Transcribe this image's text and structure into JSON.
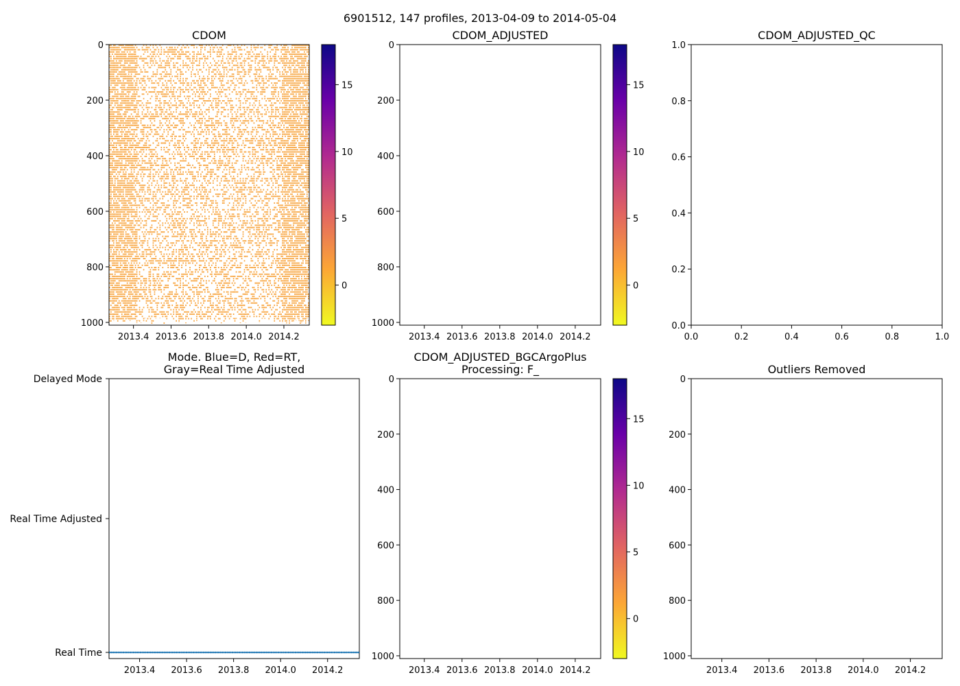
{
  "suptitle": "6901512, 147 profiles, 2013-04-09 to 2014-05-04",
  "chart_data": [
    {
      "id": "cdom",
      "type": "heatmap",
      "title": "CDOM",
      "ylim": [
        1010,
        0
      ],
      "xlim": [
        2013.27,
        2014.335
      ],
      "yticks": [
        0,
        200,
        400,
        600,
        800,
        1000
      ],
      "xticks": [
        2013.4,
        2013.6,
        2013.8,
        2014.0,
        2014.2
      ],
      "xtick_labels": [
        "2013.4",
        "2013.6",
        "2013.8",
        "2014.0",
        "2014.2"
      ],
      "ytick_labels": [
        "0",
        "200",
        "400",
        "600",
        "800",
        "1000"
      ],
      "profiles": 147,
      "value_estimate": 0,
      "dense_ranges": [
        [
          2013.27,
          2013.42
        ],
        [
          2014.19,
          2014.335
        ]
      ],
      "colorbar": {
        "range": [
          -3,
          18
        ],
        "ticks": [
          0,
          5,
          10,
          15
        ],
        "tick_labels": [
          "0",
          "5",
          "10",
          "15"
        ],
        "cmap": "plasma_r"
      }
    },
    {
      "id": "cdom_adjusted",
      "type": "heatmap",
      "title": "CDOM_ADJUSTED",
      "ylim": [
        1010,
        0
      ],
      "xlim": [
        2013.27,
        2014.335
      ],
      "yticks": [
        0,
        200,
        400,
        600,
        800,
        1000
      ],
      "ytick_labels": [
        "0",
        "200",
        "400",
        "600",
        "800",
        "1000"
      ],
      "xticks": [
        2013.4,
        2013.6,
        2013.8,
        2014.0,
        2014.2
      ],
      "xtick_labels": [
        "2013.4",
        "2013.6",
        "2013.8",
        "2014.0",
        "2014.2"
      ],
      "values": [],
      "colorbar": {
        "range": [
          -3,
          18
        ],
        "ticks": [
          0,
          5,
          10,
          15
        ],
        "tick_labels": [
          "0",
          "5",
          "10",
          "15"
        ],
        "cmap": "plasma_r"
      }
    },
    {
      "id": "cdom_adjusted_qc",
      "type": "scatter",
      "title": "CDOM_ADJUSTED_QC",
      "xlim": [
        0,
        1
      ],
      "ylim": [
        0,
        1
      ],
      "xticks": [
        0,
        0.2,
        0.4,
        0.6,
        0.8,
        1.0
      ],
      "xtick_labels": [
        "0.0",
        "0.2",
        "0.4",
        "0.6",
        "0.8",
        "1.0"
      ],
      "yticks": [
        0,
        0.2,
        0.4,
        0.6,
        0.8,
        1.0
      ],
      "ytick_labels": [
        "0.0",
        "0.2",
        "0.4",
        "0.6",
        "0.8",
        "1.0"
      ],
      "values": []
    },
    {
      "id": "mode",
      "type": "scatter",
      "title": "Mode. Blue=D, Red=RT,",
      "title_line2": "Gray=Real Time Adjusted",
      "xlim": [
        2013.27,
        2014.335
      ],
      "xticks": [
        2013.4,
        2013.6,
        2013.8,
        2014.0,
        2014.2
      ],
      "xtick_labels": [
        "2013.4",
        "2013.6",
        "2013.8",
        "2014.0",
        "2014.2"
      ],
      "categories": [
        "Delayed Mode",
        "Real Time Adjusted",
        "Real Time"
      ],
      "series": [
        {
          "name": "Real Time",
          "category": "Real Time",
          "profiles": 147,
          "x_range": [
            2013.27,
            2014.335
          ],
          "color": "#1f77b4"
        }
      ]
    },
    {
      "id": "bgcargoplus",
      "type": "heatmap",
      "title": "CDOM_ADJUSTED_BGCArgoPlus",
      "title_line2": "Processing: F_",
      "ylim": [
        1010,
        0
      ],
      "xlim": [
        2013.27,
        2014.335
      ],
      "yticks": [
        0,
        200,
        400,
        600,
        800,
        1000
      ],
      "ytick_labels": [
        "0",
        "200",
        "400",
        "600",
        "800",
        "1000"
      ],
      "xticks": [
        2013.4,
        2013.6,
        2013.8,
        2014.0,
        2014.2
      ],
      "xtick_labels": [
        "2013.4",
        "2013.6",
        "2013.8",
        "2014.0",
        "2014.2"
      ],
      "values": [],
      "colorbar": {
        "range": [
          -3,
          18
        ],
        "ticks": [
          0,
          5,
          10,
          15
        ],
        "tick_labels": [
          "0",
          "5",
          "10",
          "15"
        ],
        "cmap": "plasma_r"
      }
    },
    {
      "id": "outliers",
      "type": "scatter",
      "title": "Outliers Removed",
      "ylim": [
        1010,
        0
      ],
      "xlim": [
        2013.27,
        2014.335
      ],
      "yticks": [
        0,
        200,
        400,
        600,
        800,
        1000
      ],
      "ytick_labels": [
        "0",
        "200",
        "400",
        "600",
        "800",
        "1000"
      ],
      "xticks": [
        2013.4,
        2013.6,
        2013.8,
        2014.0,
        2014.2
      ],
      "xtick_labels": [
        "2013.4",
        "2013.6",
        "2013.8",
        "2014.0",
        "2014.2"
      ],
      "values": []
    }
  ],
  "colors": {
    "data_fill": "#f8a33b",
    "mode_marker": "#1f77b4",
    "axis": "#000000"
  }
}
